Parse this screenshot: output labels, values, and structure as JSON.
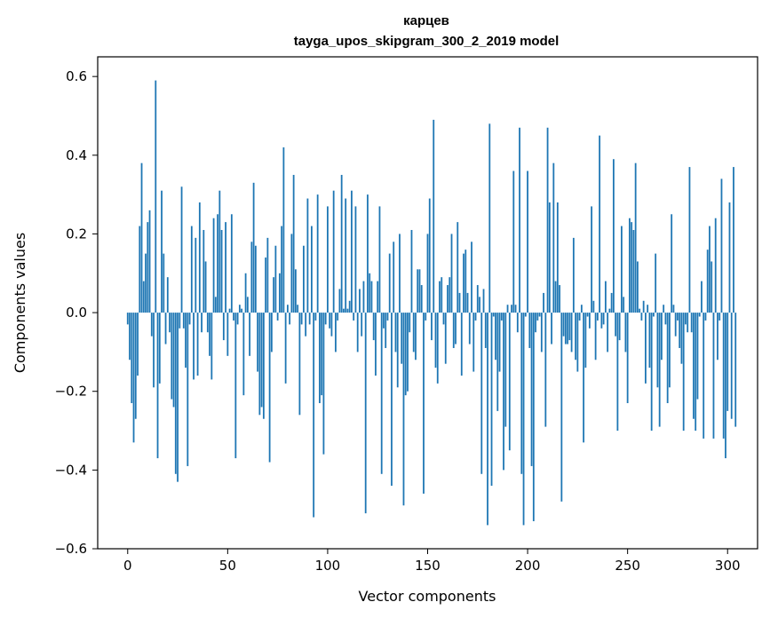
{
  "chart_data": {
    "type": "bar",
    "title": "карцев",
    "subtitle": "tayga_upos_skipgram_300_2_2019 model",
    "xlabel": "Vector components",
    "ylabel": "Components values",
    "xlim": [
      -15,
      315
    ],
    "ylim": [
      -0.6,
      0.65
    ],
    "xticks": [
      0,
      50,
      100,
      150,
      200,
      250,
      300
    ],
    "xtick_labels": [
      "0",
      "50",
      "100",
      "150",
      "200",
      "250",
      "300"
    ],
    "yticks": [
      -0.6,
      -0.4,
      -0.2,
      0.0,
      0.2,
      0.4,
      0.6
    ],
    "ytick_labels": [
      "−0.6",
      "−0.4",
      "−0.2",
      "0.0",
      "0.2",
      "0.4",
      "0.6"
    ],
    "grid": false,
    "color": "#1f77b4",
    "x_start": 0,
    "values": [
      -0.03,
      -0.12,
      -0.23,
      -0.33,
      -0.27,
      -0.16,
      0.22,
      0.38,
      0.08,
      0.15,
      0.23,
      0.26,
      -0.06,
      -0.19,
      0.59,
      -0.37,
      -0.18,
      0.31,
      0.15,
      -0.08,
      0.09,
      -0.05,
      -0.22,
      -0.24,
      -0.41,
      -0.43,
      -0.04,
      0.32,
      -0.04,
      -0.14,
      -0.39,
      -0.03,
      0.22,
      -0.17,
      0.19,
      -0.16,
      0.28,
      -0.05,
      0.21,
      0.13,
      -0.05,
      -0.11,
      -0.17,
      0.24,
      0.04,
      0.25,
      0.31,
      0.21,
      -0.07,
      0.23,
      -0.11,
      0.01,
      0.25,
      -0.02,
      -0.37,
      -0.03,
      0.02,
      0.01,
      -0.21,
      0.1,
      0.04,
      -0.11,
      0.18,
      0.33,
      0.17,
      -0.15,
      -0.26,
      -0.24,
      -0.27,
      0.14,
      0.19,
      -0.38,
      -0.1,
      0.09,
      0.17,
      -0.02,
      0.1,
      0.22,
      0.42,
      -0.18,
      0.02,
      -0.03,
      0.2,
      0.35,
      0.11,
      0.02,
      -0.26,
      -0.03,
      0.17,
      -0.06,
      0.29,
      -0.03,
      0.22,
      -0.52,
      -0.02,
      0.3,
      -0.23,
      -0.21,
      -0.36,
      -0.03,
      0.27,
      -0.04,
      -0.06,
      0.31,
      -0.1,
      -0.02,
      0.06,
      0.35,
      0.01,
      0.29,
      0.01,
      0.03,
      0.31,
      -0.02,
      0.27,
      -0.1,
      0.06,
      -0.06,
      0.08,
      -0.51,
      0.3,
      0.1,
      0.08,
      -0.07,
      -0.16,
      0.08,
      0.27,
      -0.41,
      -0.04,
      -0.09,
      -0.02,
      0.15,
      -0.44,
      0.18,
      -0.1,
      -0.19,
      0.2,
      -0.13,
      -0.49,
      -0.21,
      -0.2,
      -0.05,
      0.21,
      -0.1,
      -0.12,
      0.11,
      0.11,
      0.07,
      -0.46,
      -0.02,
      0.2,
      0.29,
      -0.07,
      0.49,
      -0.14,
      -0.18,
      0.08,
      0.09,
      -0.03,
      -0.13,
      0.07,
      0.09,
      0.2,
      -0.09,
      -0.08,
      0.23,
      0.05,
      -0.16,
      0.15,
      0.16,
      0.05,
      -0.08,
      0.18,
      -0.15,
      -0.02,
      0.07,
      0.04,
      -0.41,
      0.06,
      -0.09,
      -0.54,
      0.48,
      -0.44,
      -0.01,
      -0.12,
      -0.25,
      -0.15,
      -0.02,
      -0.4,
      -0.29,
      0.02,
      -0.35,
      0.02,
      0.36,
      0.02,
      -0.05,
      0.47,
      -0.41,
      -0.54,
      -0.01,
      0.36,
      -0.09,
      -0.39,
      -0.53,
      -0.05,
      -0.02,
      -0.01,
      -0.1,
      0.05,
      -0.29,
      0.47,
      0.28,
      -0.08,
      0.38,
      0.08,
      0.28,
      0.07,
      -0.48,
      -0.06,
      -0.08,
      -0.08,
      -0.07,
      -0.1,
      0.19,
      -0.12,
      -0.15,
      -0.02,
      0.02,
      -0.33,
      -0.14,
      -0.01,
      -0.04,
      0.27,
      0.03,
      -0.12,
      -0.02,
      0.45,
      -0.04,
      -0.03,
      0.08,
      -0.1,
      0.01,
      0.05,
      0.39,
      -0.06,
      -0.3,
      -0.07,
      0.22,
      0.04,
      -0.1,
      -0.23,
      0.24,
      0.23,
      0.21,
      0.38,
      0.13,
      0.01,
      -0.02,
      0.03,
      -0.18,
      0.02,
      -0.14,
      -0.3,
      -0.01,
      0.15,
      -0.19,
      -0.29,
      -0.12,
      0.02,
      -0.03,
      -0.23,
      -0.19,
      0.25,
      0.02,
      -0.06,
      -0.02,
      -0.09,
      -0.13,
      -0.3,
      -0.03,
      -0.05,
      0.37,
      -0.05,
      -0.27,
      -0.3,
      -0.22,
      -0.01,
      0.08,
      -0.32,
      -0.02,
      0.16,
      0.22,
      0.13,
      -0.32,
      0.24,
      -0.12,
      -0.02,
      0.34,
      -0.32,
      -0.37,
      -0.25,
      0.28,
      -0.27,
      0.37,
      -0.29
    ]
  }
}
